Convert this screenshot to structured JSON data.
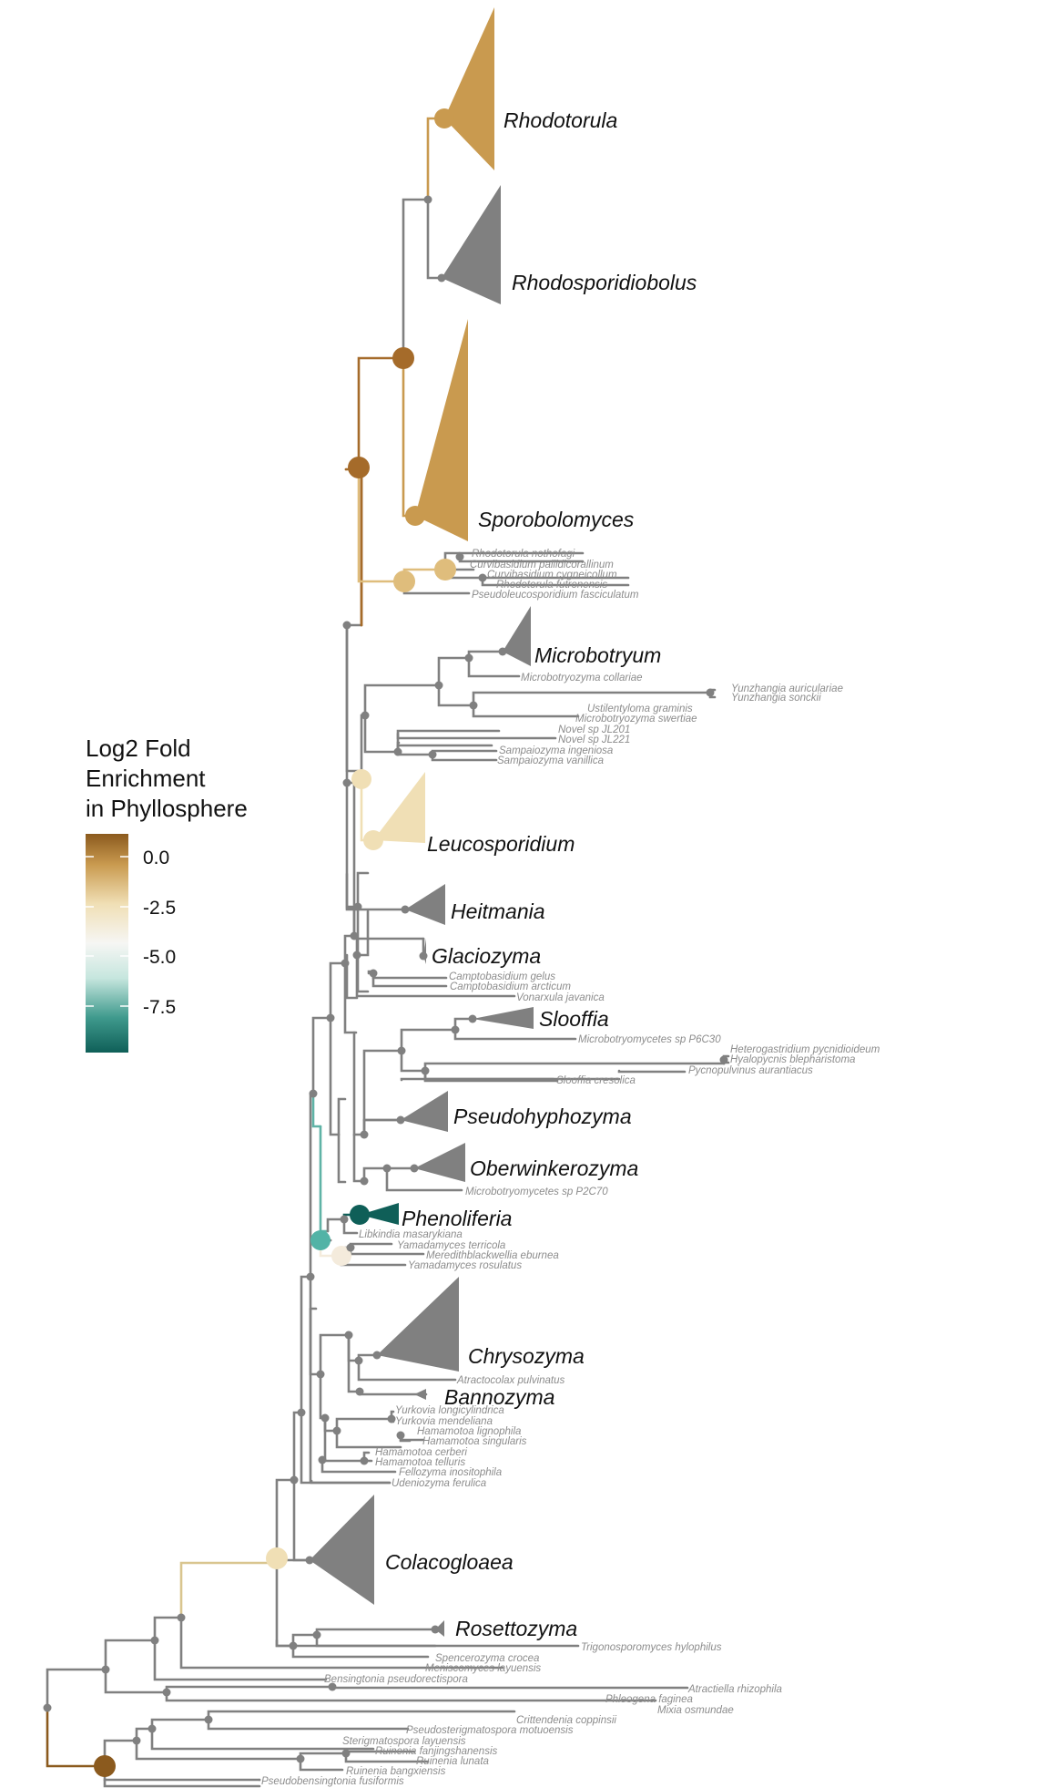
{
  "legend": {
    "title_lines": [
      "Log2 Fold",
      "Enrichment",
      "in Phyllosphere"
    ],
    "ticks": [
      "0.0",
      "-2.5",
      "-5.0",
      "-7.5"
    ],
    "colors": [
      "#8b5a1e",
      "#c99a4f",
      "#f0dfb5",
      "#f6f6f4",
      "#c6e6de",
      "#3f9a8d",
      "#0f5f58"
    ]
  },
  "colors": {
    "grey": "#808080",
    "dark_brown": "#8b5a1e",
    "brown": "#a56b2a",
    "gold": "#c99a4f",
    "light_gold": "#dfbd7c",
    "pale_gold": "#f0dfb5",
    "cream": "#f4ebdc",
    "teal": "#52b3a6",
    "dark_teal": "#0f5f58"
  },
  "clades": {
    "rhodotorula": "Rhodotorula",
    "rhodosporidiobolus": "Rhodosporidiobolus",
    "sporobolomyces": "Sporobolomyces",
    "microbotryum": "Microbotryum",
    "leucosporidium": "Leucosporidium",
    "heitmania": "Heitmania",
    "glaciozyma": "Glaciozyma",
    "slooffia": "Slooffia",
    "pseudohyphozyma": "Pseudohyphozyma",
    "oberwinkerozyma": "Oberwinkerozyma",
    "phenoliferia": "Phenoliferia",
    "chrysozyma": "Chrysozyma",
    "bannozyma": "Bannozyma",
    "colacogloaea": "Colacogloaea",
    "rosettozyma": "Rosettozyma"
  },
  "tips": {
    "rhodotorula_nothofagi": "Rhodotorula  nothofagi",
    "curvibasidium_pallidicorallinum": "Curvibasidium pallidicorallinum",
    "curvibasidium_cygneicollum": "Curvibasidium cygneicollum",
    "rhodotorula_futronensis": "Rhodotorula  futronensis",
    "pseudoleucosporidium_fasciculatum": "Pseudoleucosporidium fasciculatum",
    "microbotryozyma_collariae": "Microbotryozyma collariae",
    "yunzhangia_auriculariae": "Yunzhangia auriculariae",
    "yunzhangia_sonckii": "Yunzhangia sonckii",
    "ustilentyloma_graminis": "Ustilentyloma graminis",
    "microbotryozyma_swertiae": "Microbotryozyma swertiae",
    "novel_jl201": "Novel sp JL201",
    "novel_jl221": "Novel sp JL221",
    "sampaiozyma_ingeniosa": "Sampaiozyma ingeniosa",
    "sampaiozyma_vanillica": "Sampaiozyma vanillica",
    "camptobasidium_gelus": "Camptobasidium gelus",
    "camptobasidium_arcticum": "Camptobasidium arcticum",
    "vonarxula_javanica": "Vonarxula javanica",
    "microbotryomycetes_p6c30": "Microbotryomycetes sp P6C30",
    "heterogastridium_pycnidioideum": "Heterogastridium pycnidioideum",
    "hyalopycnis_blepharistoma": "Hyalopycnis blepharistoma",
    "pycnopulvinus_aurantiacus": "Pycnopulvinus aurantiacus",
    "slooffia_cresolica": "Slooffia cresolica",
    "microbotryomycetes_p2c70": "Microbotryomycetes sp P2C70",
    "libkindia_masarykiana": "Libkindia masarykiana",
    "yamadamyces_terricola": "Yamadamyces terricola",
    "meredithblackwellia_eburnea": "Meredithblackwellia eburnea",
    "yamadamyces_rosulatus": "Yamadamyces rosulatus",
    "atractocolax_pulvinatus": "Atractocolax pulvinatus",
    "yurkovia_longicylindrica": "Yurkovia longicylindrica",
    "yurkovia_mendeliana": "Yurkovia mendeliana",
    "hamamotoa_lignophila": "Hamamotoa lignophila",
    "hamamotoa_singularis": "Hamamotoa singularis",
    "hamamotoa_cerberi": "Hamamotoa cerberi",
    "hamamotoa_telluris": "Hamamotoa telluris",
    "fellozyma_inositophila": "Fellozyma inositophila",
    "udeniozyma_ferulica": "Udeniozyma ferulica",
    "trigonosporomyces_hylophilus": "Trigonosporomyces hylophilus",
    "spencerozyma_crocea": "Spencerozyma crocea",
    "meniscomyces_layuensis": "Meniscomyces layuensis",
    "bensingtonia_pseudorectispora": "Bensingtonia pseudorectispora",
    "atractiella_rhizophila": "Atractiella rhizophila",
    "phleogena_faginea": "Phleogena faginea",
    "mixia_osmundae": "Mixia osmundae",
    "crittendenia_coppinsii": "Crittendenia coppinsii",
    "pseudosterigmatospora_motuoensis": "Pseudosterigmatospora motuoensis",
    "sterigmatospora_layuensis": "Sterigmatospora layuensis",
    "ruinenia_fanjingshanensis": "Ruinenia fanjingshanensis",
    "ruinenia_lunata": "Ruinenia lunata",
    "ruinenia_bangxiensis": "Ruinenia bangxiensis",
    "pseudobensingtonia_fusiformis": "Pseudobensingtonia fusiformis"
  }
}
